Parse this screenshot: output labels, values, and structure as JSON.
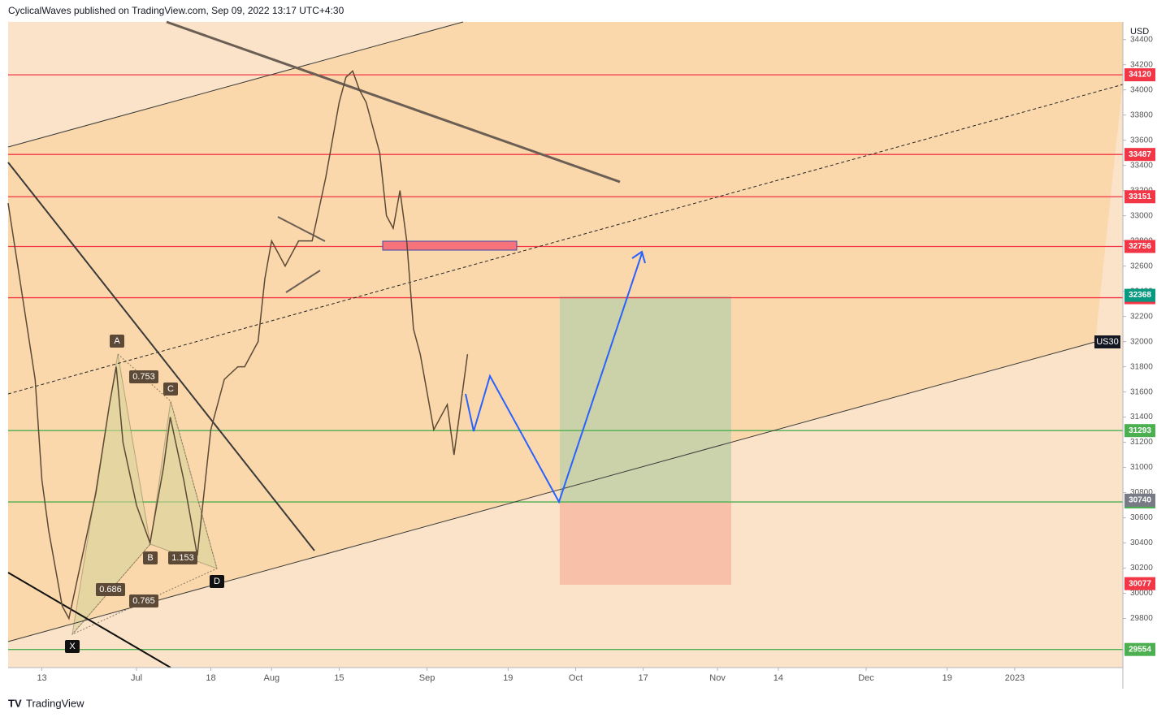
{
  "header": {
    "title": "CyclicalWaves published on TradingView.com, Sep 09, 2022 13:17 UTC+4:30"
  },
  "footer": {
    "brand": "TradingView"
  },
  "chart_data": {
    "type": "line",
    "currency": "USD",
    "symbol": "US30",
    "ylim": [
      29410,
      34540
    ],
    "yticks": [
      29800,
      30000,
      30200,
      30400,
      30600,
      30800,
      31000,
      31200,
      31400,
      31600,
      31800,
      32000,
      32200,
      32400,
      32600,
      32800,
      33000,
      33200,
      33400,
      33600,
      33800,
      34000,
      34200,
      34400
    ],
    "xlim": [
      0,
      165
    ],
    "xticks": [
      {
        "value": 5,
        "label": "13"
      },
      {
        "value": 19,
        "label": "Jul"
      },
      {
        "value": 30,
        "label": "18"
      },
      {
        "value": 39,
        "label": "Aug"
      },
      {
        "value": 49,
        "label": "15"
      },
      {
        "value": 62,
        "label": "Sep"
      },
      {
        "value": 74,
        "label": "19"
      },
      {
        "value": 84,
        "label": "Oct"
      },
      {
        "value": 94,
        "label": "17"
      },
      {
        "value": 105,
        "label": "Nov"
      },
      {
        "value": 114,
        "label": "14"
      },
      {
        "value": 127,
        "label": "Dec"
      },
      {
        "value": 139,
        "label": "19"
      },
      {
        "value": 149,
        "label": "2023"
      }
    ],
    "price": {
      "color": "#5d4a36",
      "x": [
        0,
        4,
        5,
        6,
        8,
        9,
        11,
        13,
        15,
        16,
        17,
        19,
        21,
        23,
        24,
        26,
        28,
        29,
        30,
        32,
        34,
        35,
        37,
        38,
        39,
        41,
        43,
        45,
        47,
        48,
        49,
        50,
        51,
        52,
        53,
        55,
        56,
        57,
        58,
        59,
        60,
        61,
        62,
        63,
        64,
        65,
        66,
        67,
        68
      ],
      "values": [
        33100,
        31700,
        30900,
        30500,
        29900,
        29800,
        30300,
        30800,
        31500,
        31800,
        31200,
        30700,
        30400,
        31000,
        31400,
        30900,
        30300,
        30800,
        31300,
        31700,
        31800,
        31800,
        32000,
        32500,
        32800,
        32600,
        32800,
        32800,
        33300,
        33600,
        33900,
        34100,
        34150,
        34000,
        33900,
        33500,
        33000,
        32900,
        33200,
        32800,
        32100,
        31900,
        31600,
        31300,
        31400,
        31500,
        31100,
        31500,
        31900
      ]
    },
    "levels": [
      {
        "value": 34120,
        "color": "#f23645"
      },
      {
        "value": 33487,
        "color": "#f23645"
      },
      {
        "value": 33151,
        "color": "#f23645"
      },
      {
        "value": 32756,
        "color": "#f23645"
      },
      {
        "value": 32349,
        "color": "#f23645"
      },
      {
        "value": 31293,
        "color": "#4caf50"
      },
      {
        "value": 30726,
        "color": "#4caf50"
      },
      {
        "value": 29554,
        "color": "#4caf50"
      }
    ],
    "price_labels": [
      {
        "value": 32368,
        "color": "#089981"
      },
      {
        "value": 30740,
        "color": "#787b86"
      },
      {
        "value": 30077,
        "color": "#f23645"
      }
    ],
    "annotations": [
      {
        "text": "A"
      },
      {
        "text": "B"
      },
      {
        "text": "C"
      },
      {
        "text": "D"
      },
      {
        "text": "X"
      },
      {
        "text": "0.753"
      },
      {
        "text": "1.153"
      },
      {
        "text": "0.686"
      },
      {
        "text": "0.765"
      }
    ]
  }
}
